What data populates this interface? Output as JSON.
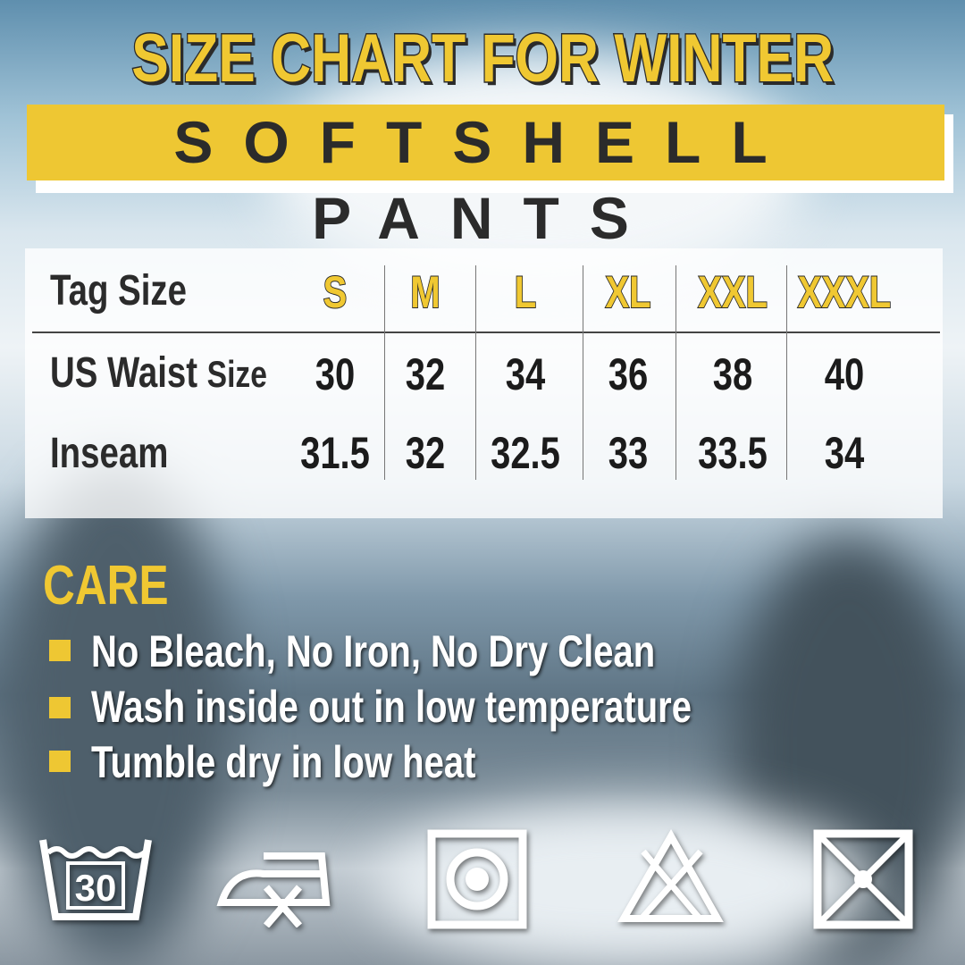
{
  "title": "SIZE CHART FOR WINTER",
  "subtitle": "SOFTSHELL PANTS",
  "table": {
    "header_label": "Tag Size",
    "sizes": [
      "S",
      "M",
      "L",
      "XL",
      "XXL",
      "XXXL"
    ],
    "rows": [
      {
        "label_main": "US Waist",
        "label_small": "Size",
        "values": [
          "30",
          "32",
          "34",
          "36",
          "38",
          "40"
        ]
      },
      {
        "label_main": "Inseam",
        "label_small": "",
        "values": [
          "31.5",
          "32",
          "32.5",
          "33",
          "33.5",
          "34"
        ]
      }
    ]
  },
  "care": {
    "heading": "CARE",
    "items": [
      "No Bleach, No Iron, No Dry Clean",
      "Wash inside out in low temperature",
      "Tumble dry in low heat"
    ],
    "accent": "#eec733"
  },
  "care_icons": [
    {
      "icon": "wash-30-icon",
      "label": "30"
    },
    {
      "icon": "no-iron-icon"
    },
    {
      "icon": "tumble-dry-icon"
    },
    {
      "icon": "no-bleach-icon"
    },
    {
      "icon": "no-dry-clean-icon"
    }
  ]
}
